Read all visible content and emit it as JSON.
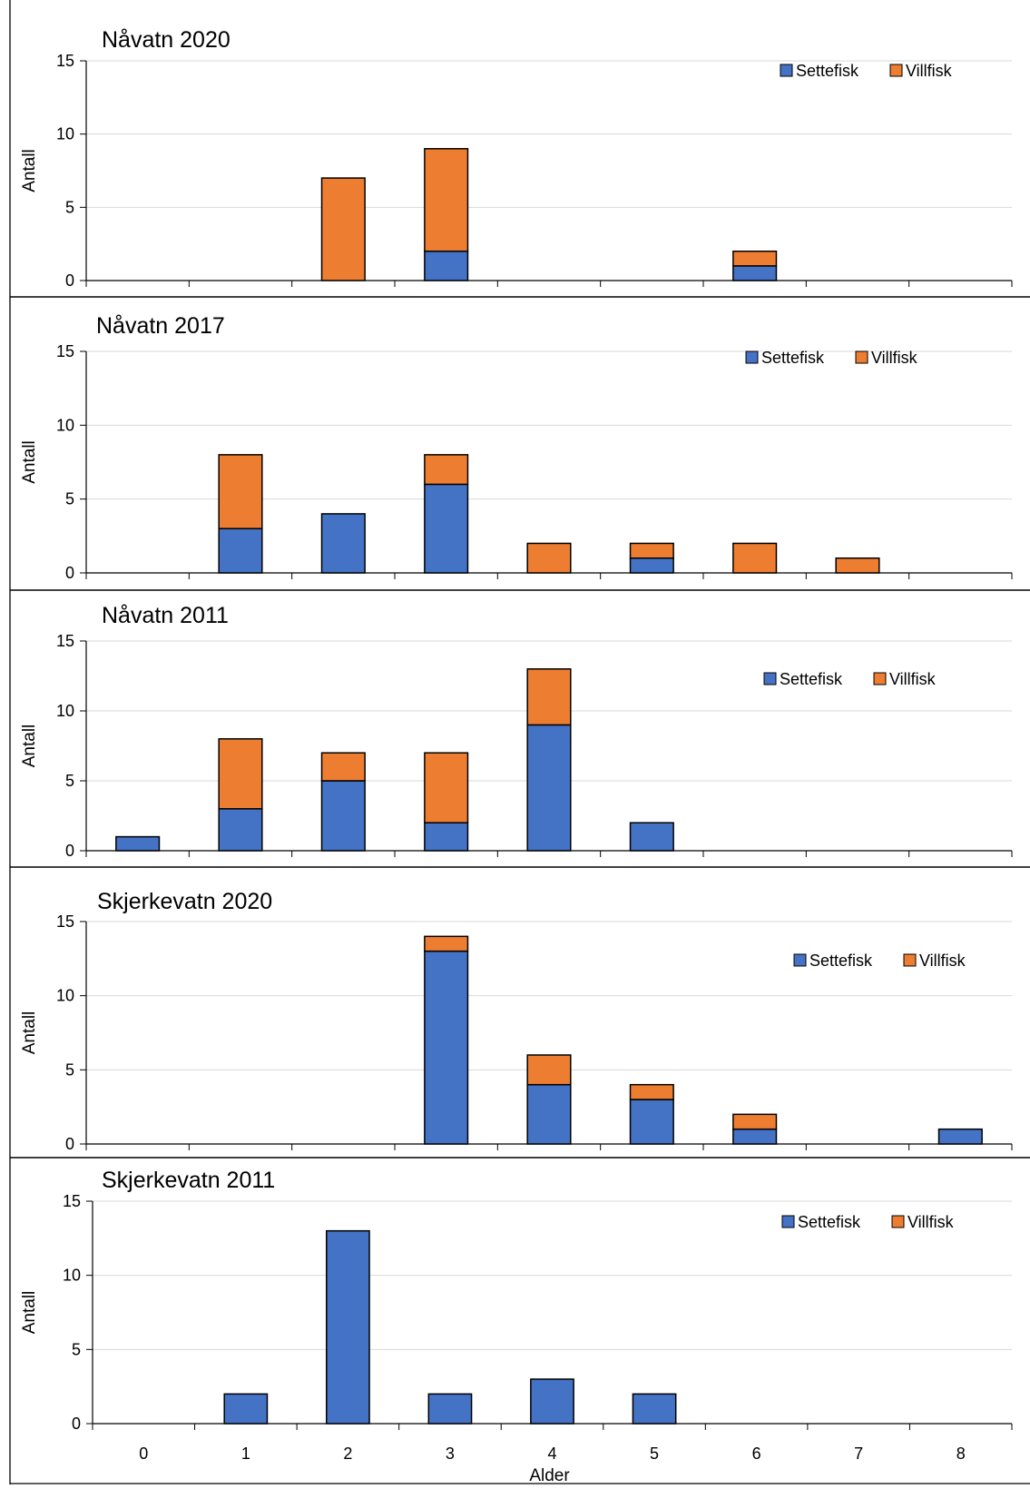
{
  "colors": {
    "settefisk": "#4472C4",
    "villfisk": "#ED7D31",
    "grid": "#D9D9D9",
    "axis": "#000000"
  },
  "legend_labels": [
    "Settefisk",
    "Villfisk"
  ],
  "chart_data": [
    {
      "type": "bar",
      "stacked": true,
      "title": "Nåvatn 2020",
      "ylabel": "Antall",
      "xlabel": "",
      "categories": [
        "0",
        "1",
        "2",
        "3",
        "4",
        "5",
        "6",
        "7",
        "8"
      ],
      "tick_labels_shown": false,
      "yticks": [
        "0",
        "5",
        "10",
        "15"
      ],
      "ylim": [
        0,
        15
      ],
      "grid": true,
      "legend": "top-right",
      "series": [
        {
          "name": "Settefisk",
          "values": [
            0,
            0,
            0,
            2,
            0,
            0,
            1,
            0,
            0
          ]
        },
        {
          "name": "Villfisk",
          "values": [
            0,
            0,
            7,
            7,
            0,
            0,
            1,
            0,
            0
          ]
        }
      ]
    },
    {
      "type": "bar",
      "stacked": true,
      "title": "Nåvatn 2017",
      "ylabel": "Antall",
      "xlabel": "",
      "categories": [
        "0",
        "1",
        "2",
        "3",
        "4",
        "5",
        "6",
        "7",
        "8"
      ],
      "tick_labels_shown": false,
      "yticks": [
        "0",
        "5",
        "10",
        "15"
      ],
      "ylim": [
        0,
        15
      ],
      "grid": true,
      "legend": "top-right",
      "series": [
        {
          "name": "Settefisk",
          "values": [
            0,
            3,
            4,
            6,
            0,
            1,
            0,
            0,
            0
          ]
        },
        {
          "name": "Villfisk",
          "values": [
            0,
            5,
            0,
            2,
            2,
            1,
            2,
            1,
            0
          ]
        }
      ]
    },
    {
      "type": "bar",
      "stacked": true,
      "title": "Nåvatn 2011",
      "ylabel": "Antall",
      "xlabel": "",
      "categories": [
        "0",
        "1",
        "2",
        "3",
        "4",
        "5",
        "6",
        "7",
        "8"
      ],
      "tick_labels_shown": false,
      "yticks": [
        "0",
        "5",
        "10",
        "15"
      ],
      "ylim": [
        0,
        15
      ],
      "grid": true,
      "legend": "top-right",
      "series": [
        {
          "name": "Settefisk",
          "values": [
            1,
            3,
            5,
            2,
            9,
            2,
            0,
            0,
            0
          ]
        },
        {
          "name": "Villfisk",
          "values": [
            0,
            5,
            2,
            5,
            4,
            0,
            0,
            0,
            0
          ]
        }
      ]
    },
    {
      "type": "bar",
      "stacked": true,
      "title": "Skjerkevatn 2020",
      "ylabel": "Antall",
      "xlabel": "",
      "categories": [
        "0",
        "1",
        "2",
        "3",
        "4",
        "5",
        "6",
        "7",
        "8"
      ],
      "tick_labels_shown": false,
      "yticks": [
        "0",
        "5",
        "10",
        "15"
      ],
      "ylim": [
        0,
        15
      ],
      "grid": true,
      "legend": "top-right",
      "series": [
        {
          "name": "Settefisk",
          "values": [
            0,
            0,
            0,
            13,
            4,
            3,
            1,
            0,
            1
          ]
        },
        {
          "name": "Villfisk",
          "values": [
            0,
            0,
            0,
            1,
            2,
            1,
            1,
            0,
            0
          ]
        }
      ]
    },
    {
      "type": "bar",
      "stacked": true,
      "title": "Skjerkevatn 2011",
      "ylabel": "Antall",
      "xlabel": "Alder",
      "categories": [
        "0",
        "1",
        "2",
        "3",
        "4",
        "5",
        "6",
        "7",
        "8"
      ],
      "tick_labels_shown": true,
      "yticks": [
        "0",
        "5",
        "10",
        "15"
      ],
      "ylim": [
        0,
        15
      ],
      "grid": true,
      "legend": "top-right",
      "series": [
        {
          "name": "Settefisk",
          "values": [
            0,
            2,
            13,
            2,
            3,
            2,
            0,
            0,
            0
          ]
        },
        {
          "name": "Villfisk",
          "values": [
            0,
            0,
            0,
            0,
            0,
            0,
            0,
            0,
            0
          ]
        }
      ]
    }
  ]
}
